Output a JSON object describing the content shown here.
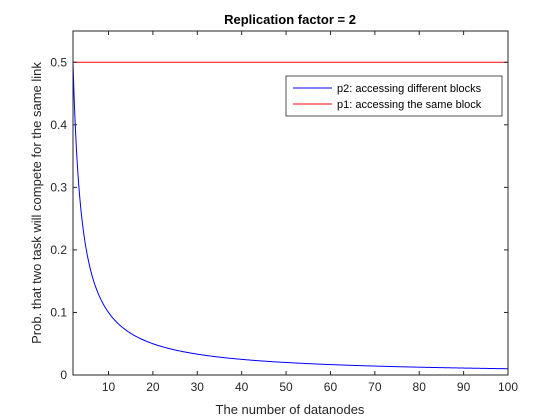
{
  "chart_data": {
    "type": "line",
    "title": "Replication factor = 2",
    "xlabel": "The number of datanodes",
    "ylabel": "Prob. that two task will compete for the same link",
    "xlim": [
      2,
      100
    ],
    "ylim": [
      0,
      0.55
    ],
    "xticks": [
      10,
      20,
      30,
      40,
      50,
      60,
      70,
      80,
      90,
      100
    ],
    "yticks": [
      0,
      0.1,
      0.2,
      0.3,
      0.4,
      0.5
    ],
    "grid": false,
    "legend_position": "top-right",
    "series": [
      {
        "name": "p2: accessing different blocks",
        "color": "#0000ff",
        "x": [
          2,
          3,
          4,
          5,
          6,
          7,
          8,
          10,
          12,
          15,
          20,
          25,
          30,
          40,
          50,
          60,
          70,
          80,
          90,
          100
        ],
        "y": [
          0.5,
          0.333,
          0.25,
          0.2,
          0.167,
          0.143,
          0.125,
          0.1,
          0.083,
          0.067,
          0.05,
          0.04,
          0.033,
          0.025,
          0.02,
          0.017,
          0.014,
          0.013,
          0.011,
          0.01
        ]
      },
      {
        "name": "p1: accessing the same block",
        "color": "#ff0000",
        "x": [
          2,
          100
        ],
        "y": [
          0.5,
          0.5
        ]
      }
    ]
  }
}
